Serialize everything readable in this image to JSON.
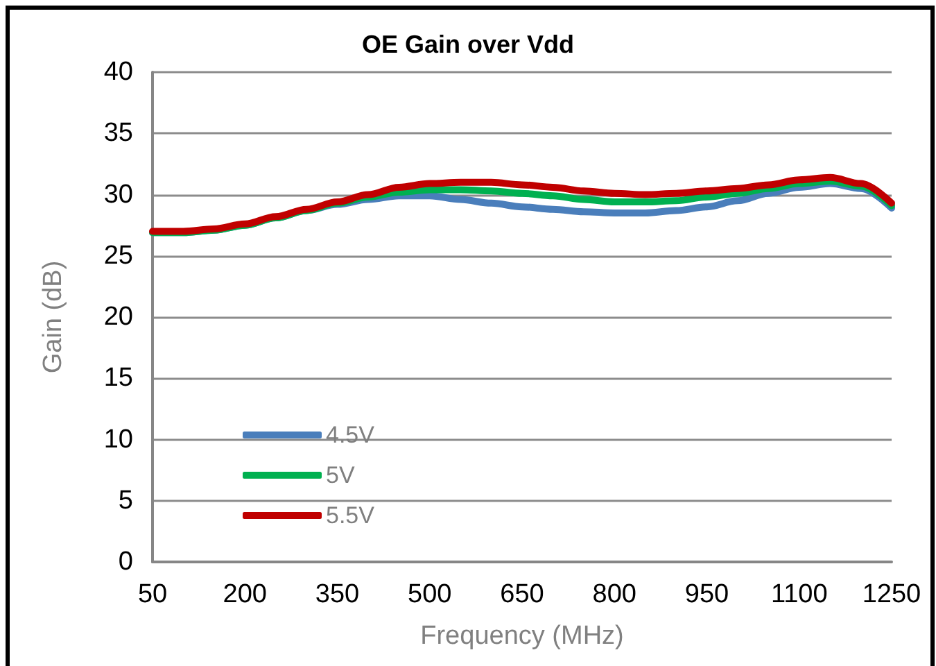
{
  "chart_data": {
    "type": "line",
    "title": "OE Gain over Vdd",
    "xlabel": "Frequency (MHz)",
    "ylabel": "Gain (dB)",
    "x": [
      50,
      100,
      150,
      200,
      250,
      300,
      350,
      400,
      450,
      500,
      550,
      600,
      650,
      700,
      750,
      800,
      850,
      900,
      950,
      1000,
      1050,
      1100,
      1150,
      1200,
      1250
    ],
    "series": [
      {
        "name": "4.5V",
        "color": "#4a7ebb",
        "values": [
          26.9,
          26.9,
          27.1,
          27.5,
          28.1,
          28.7,
          29.2,
          29.6,
          29.9,
          29.9,
          29.6,
          29.3,
          29.0,
          28.8,
          28.6,
          28.5,
          28.5,
          28.7,
          29.0,
          29.5,
          30.1,
          30.6,
          30.9,
          30.5,
          28.9
        ]
      },
      {
        "name": "5V",
        "color": "#00b050",
        "values": [
          26.9,
          26.9,
          27.1,
          27.5,
          28.1,
          28.7,
          29.3,
          29.8,
          30.2,
          30.4,
          30.4,
          30.3,
          30.1,
          29.9,
          29.6,
          29.4,
          29.4,
          29.5,
          29.8,
          30.1,
          30.5,
          30.9,
          31.1,
          30.7,
          29.1
        ]
      },
      {
        "name": "5.5V",
        "color": "#c00000",
        "values": [
          27.0,
          27.0,
          27.2,
          27.6,
          28.2,
          28.8,
          29.4,
          30.0,
          30.6,
          30.9,
          31.0,
          31.0,
          30.8,
          30.6,
          30.3,
          30.1,
          30.0,
          30.1,
          30.3,
          30.5,
          30.8,
          31.2,
          31.4,
          30.9,
          29.3
        ]
      }
    ],
    "xlim": [
      50,
      1250
    ],
    "xticks": [
      50,
      200,
      350,
      500,
      650,
      800,
      950,
      1100,
      1250
    ],
    "ylim": [
      0,
      40
    ],
    "yticks": [
      0,
      5,
      10,
      15,
      20,
      25,
      30,
      35,
      40
    ],
    "grid": "y",
    "legend": "bottom left",
    "marker": "none",
    "line_style": "solid"
  }
}
